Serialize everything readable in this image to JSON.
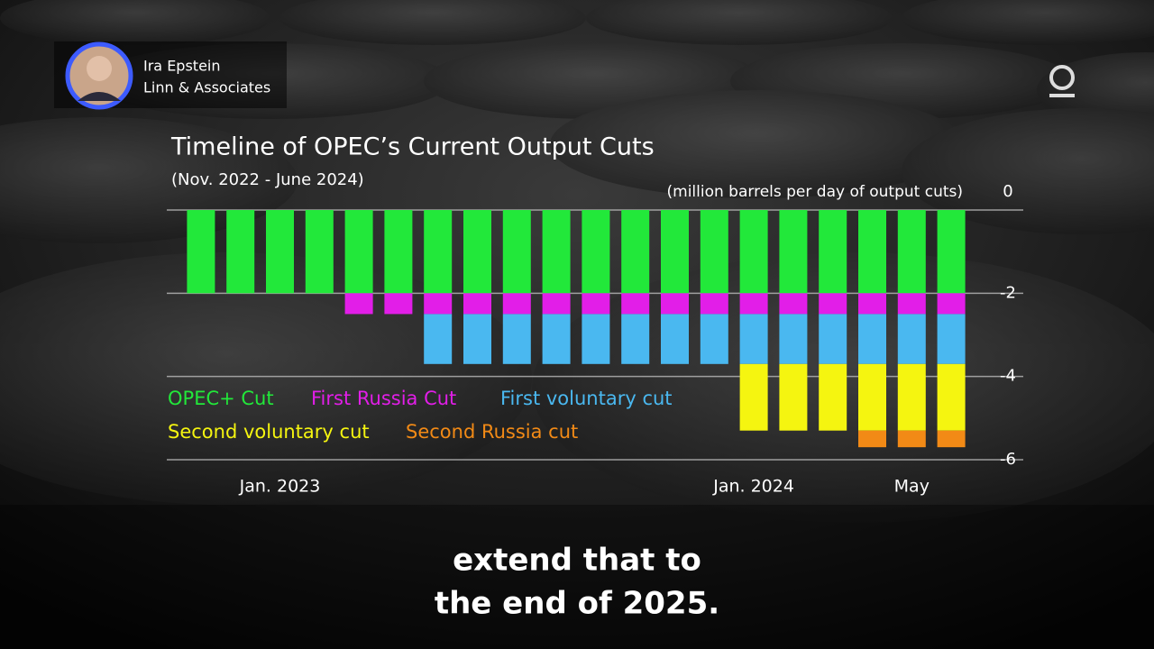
{
  "speaker": {
    "name": "Ira Epstein",
    "affiliation": "Linn & Associates"
  },
  "caption": [
    "extend that to",
    "the end of 2025."
  ],
  "chart_data": {
    "type": "stacked-bar",
    "title": "Timeline of OPEC’s Current Output Cuts",
    "subtitle": "(Nov. 2022 - June 2024)",
    "y_label": "(million barrels per day of output cuts)",
    "categories": [
      null,
      null,
      "Jan. 2023",
      null,
      null,
      null,
      null,
      null,
      null,
      null,
      null,
      null,
      null,
      null,
      "Jan. 2024",
      null,
      null,
      null,
      "May",
      null
    ],
    "series": [
      {
        "name": "OPEC+ Cut",
        "color": "#22e83a",
        "values": [
          -2,
          -2,
          -2,
          -2,
          -2,
          -2,
          -2,
          -2,
          -2,
          -2,
          -2,
          -2,
          -2,
          -2,
          -2,
          -2,
          -2,
          -2,
          -2,
          -2
        ]
      },
      {
        "name": "First Russia Cut",
        "color": "#e21ee8",
        "values": [
          null,
          null,
          null,
          null,
          -0.5,
          -0.5,
          -0.5,
          -0.5,
          -0.5,
          -0.5,
          -0.5,
          -0.5,
          -0.5,
          -0.5,
          -0.5,
          -0.5,
          -0.5,
          -0.5,
          -0.5,
          -0.5
        ]
      },
      {
        "name": "First voluntary cut",
        "color": "#4ab8f0",
        "values": [
          null,
          null,
          null,
          null,
          null,
          null,
          -1.2,
          -1.2,
          -1.2,
          -1.2,
          -1.2,
          -1.2,
          -1.2,
          -1.2,
          -1.2,
          -1.2,
          -1.2,
          -1.2,
          -1.2,
          -1.2
        ]
      },
      {
        "name": "Second voluntary cut",
        "color": "#f5f510",
        "values": [
          null,
          null,
          null,
          null,
          null,
          null,
          null,
          null,
          null,
          null,
          null,
          null,
          null,
          null,
          -1.6,
          -1.6,
          -1.6,
          -1.6,
          -1.6,
          -1.6
        ]
      },
      {
        "name": "Second Russia cut",
        "color": "#f28a16",
        "values": [
          null,
          null,
          null,
          null,
          null,
          null,
          null,
          null,
          null,
          null,
          null,
          null,
          null,
          null,
          null,
          null,
          null,
          -0.4,
          -0.4,
          -0.4
        ]
      }
    ],
    "ylim": [
      -6,
      0
    ],
    "yticks": [
      0,
      -2,
      -4,
      -6
    ],
    "grid": true
  }
}
